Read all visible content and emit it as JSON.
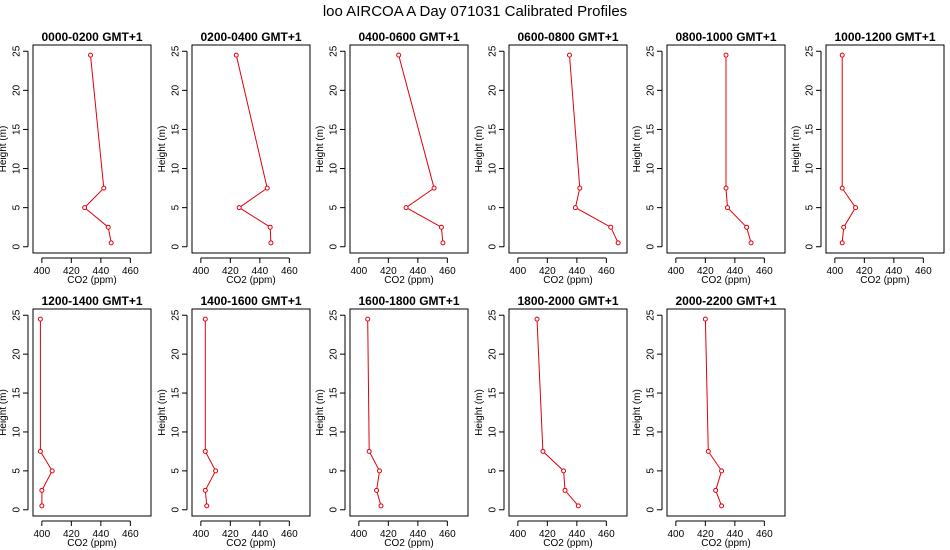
{
  "figure_title": "loo AIRCOA A  Day 071031  Calibrated Profiles",
  "colors": {
    "line": "#e0000e",
    "axis": "#000000",
    "background": "#ffffff"
  },
  "chart_data": [
    {
      "type": "line",
      "title": "0000-0200 GMT+1",
      "xlabel": "CO2 (ppm)",
      "ylabel": "Height (m)",
      "xlim": [
        394,
        474
      ],
      "ylim": [
        -0.8,
        25.8
      ],
      "x_ticks": [
        400,
        420,
        440,
        460
      ],
      "y_ticks": [
        0,
        5,
        10,
        15,
        20,
        25
      ],
      "x": [
        433,
        442,
        429,
        445,
        447
      ],
      "y": [
        24.5,
        7.5,
        5,
        2.5,
        0.5
      ]
    },
    {
      "type": "line",
      "title": "0200-0400 GMT+1",
      "xlabel": "CO2 (ppm)",
      "ylabel": "Height (m)",
      "xlim": [
        394,
        474
      ],
      "ylim": [
        -0.8,
        25.8
      ],
      "x_ticks": [
        400,
        420,
        440,
        460
      ],
      "y_ticks": [
        0,
        5,
        10,
        15,
        20,
        25
      ],
      "x": [
        424,
        445,
        426,
        447,
        447.5
      ],
      "y": [
        24.5,
        7.5,
        5,
        2.5,
        0.5
      ]
    },
    {
      "type": "line",
      "title": "0400-0600 GMT+1",
      "xlabel": "CO2 (ppm)",
      "ylabel": "Height (m)",
      "xlim": [
        394,
        474
      ],
      "ylim": [
        -0.8,
        25.8
      ],
      "x_ticks": [
        400,
        420,
        440,
        460
      ],
      "y_ticks": [
        0,
        5,
        10,
        15,
        20,
        25
      ],
      "x": [
        427,
        451,
        432,
        456,
        457
      ],
      "y": [
        24.5,
        7.5,
        5,
        2.5,
        0.5
      ]
    },
    {
      "type": "line",
      "title": "0600-0800 GMT+1",
      "xlabel": "CO2 (ppm)",
      "ylabel": "Height (m)",
      "xlim": [
        394,
        474
      ],
      "ylim": [
        -0.8,
        25.8
      ],
      "x_ticks": [
        400,
        420,
        440,
        460
      ],
      "y_ticks": [
        0,
        5,
        10,
        15,
        20,
        25
      ],
      "x": [
        435,
        442,
        439,
        463,
        468
      ],
      "y": [
        24.5,
        7.5,
        5,
        2.5,
        0.5
      ]
    },
    {
      "type": "line",
      "title": "0800-1000 GMT+1",
      "xlabel": "CO2 (ppm)",
      "ylabel": "Height (m)",
      "xlim": [
        394,
        474
      ],
      "ylim": [
        -0.8,
        25.8
      ],
      "x_ticks": [
        400,
        420,
        440,
        460
      ],
      "y_ticks": [
        0,
        5,
        10,
        15,
        20,
        25
      ],
      "x": [
        434,
        434,
        435,
        448,
        451
      ],
      "y": [
        24.5,
        7.5,
        5,
        2.5,
        0.5
      ]
    },
    {
      "type": "line",
      "title": "1000-1200 GMT+1",
      "xlabel": "CO2 (ppm)",
      "ylabel": "Height (m)",
      "xlim": [
        394,
        474
      ],
      "ylim": [
        -0.8,
        25.8
      ],
      "x_ticks": [
        400,
        420,
        440,
        460
      ],
      "y_ticks": [
        0,
        5,
        10,
        15,
        20,
        25
      ],
      "x": [
        405,
        405,
        414,
        406,
        405
      ],
      "y": [
        24.5,
        7.5,
        5,
        2.5,
        0.5
      ]
    },
    {
      "type": "line",
      "title": "1200-1400 GMT+1",
      "xlabel": "CO2 (ppm)",
      "ylabel": "Height (m)",
      "xlim": [
        394,
        474
      ],
      "ylim": [
        -0.8,
        25.8
      ],
      "x_ticks": [
        400,
        420,
        440,
        460
      ],
      "y_ticks": [
        0,
        5,
        10,
        15,
        20,
        25
      ],
      "x": [
        399,
        399,
        407,
        400,
        400
      ],
      "y": [
        24.5,
        7.5,
        5,
        2.5,
        0.5
      ]
    },
    {
      "type": "line",
      "title": "1400-1600 GMT+1",
      "xlabel": "CO2 (ppm)",
      "ylabel": "Height (m)",
      "xlim": [
        394,
        474
      ],
      "ylim": [
        -0.8,
        25.8
      ],
      "x_ticks": [
        400,
        420,
        440,
        460
      ],
      "y_ticks": [
        0,
        5,
        10,
        15,
        20,
        25
      ],
      "x": [
        403,
        403,
        410,
        403,
        404
      ],
      "y": [
        24.5,
        7.5,
        5,
        2.5,
        0.5
      ]
    },
    {
      "type": "line",
      "title": "1600-1800 GMT+1",
      "xlabel": "CO2 (ppm)",
      "ylabel": "Height (m)",
      "xlim": [
        394,
        474
      ],
      "ylim": [
        -0.8,
        25.8
      ],
      "x_ticks": [
        400,
        420,
        440,
        460
      ],
      "y_ticks": [
        0,
        5,
        10,
        15,
        20,
        25
      ],
      "x": [
        406,
        407,
        414,
        412,
        415
      ],
      "y": [
        24.5,
        7.5,
        5,
        2.5,
        0.5
      ]
    },
    {
      "type": "line",
      "title": "1800-2000 GMT+1",
      "xlabel": "CO2 (ppm)",
      "ylabel": "Height (m)",
      "xlim": [
        394,
        474
      ],
      "ylim": [
        -0.8,
        25.8
      ],
      "x_ticks": [
        400,
        420,
        440,
        460
      ],
      "y_ticks": [
        0,
        5,
        10,
        15,
        20,
        25
      ],
      "x": [
        413,
        417,
        431,
        432,
        441
      ],
      "y": [
        24.5,
        7.5,
        5,
        2.5,
        0.5
      ]
    },
    {
      "type": "line",
      "title": "2000-2200 GMT+1",
      "xlabel": "CO2 (ppm)",
      "ylabel": "Height (m)",
      "xlim": [
        394,
        474
      ],
      "ylim": [
        -0.8,
        25.8
      ],
      "x_ticks": [
        400,
        420,
        440,
        460
      ],
      "y_ticks": [
        0,
        5,
        10,
        15,
        20,
        25
      ],
      "x": [
        420,
        422,
        431,
        427,
        431
      ],
      "y": [
        24.5,
        7.5,
        5,
        2.5,
        0.5
      ]
    }
  ]
}
